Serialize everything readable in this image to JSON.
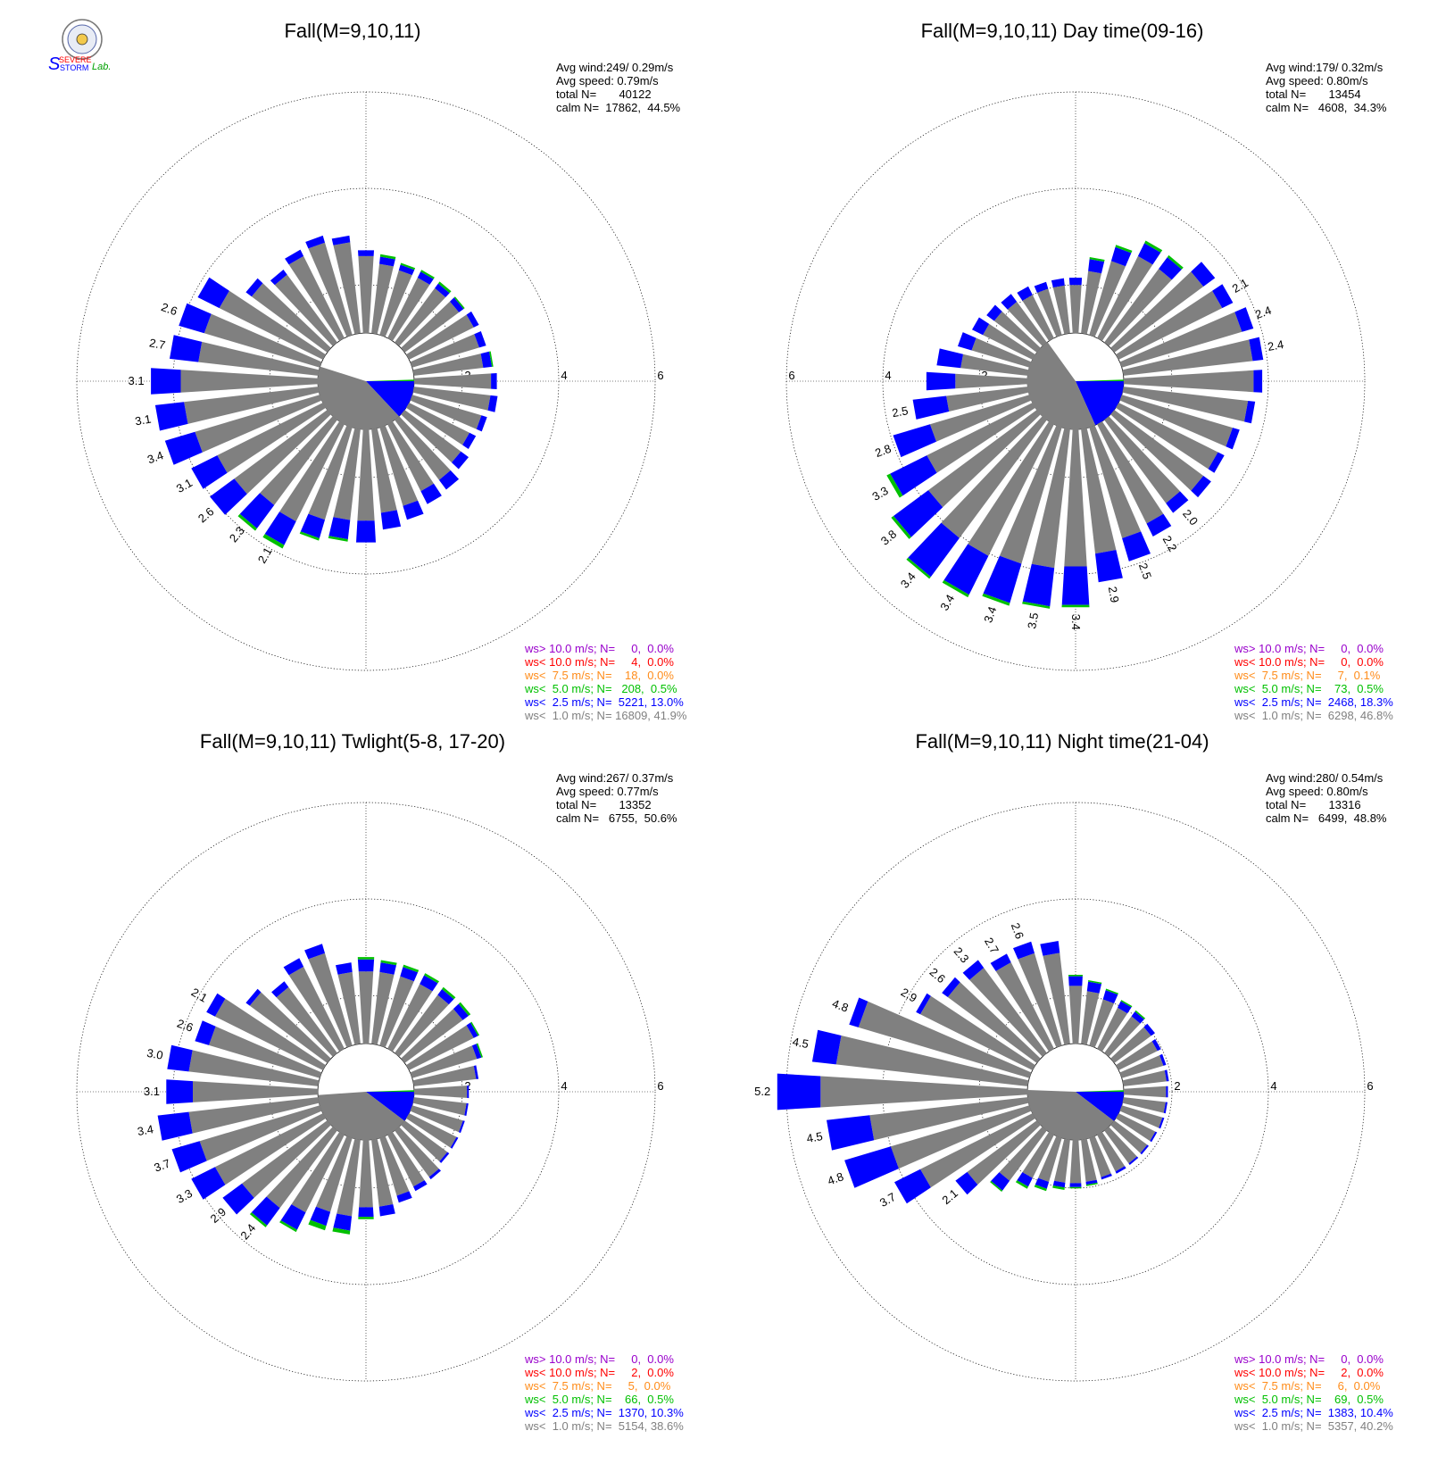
{
  "logo": {
    "text_top": "SEVERE",
    "text_mid": "STORM",
    "text_lab": "Lab.",
    "lead_letter": "S"
  },
  "colors": {
    "gray": "#808080",
    "blue": "#0000ff",
    "green": "#00c000",
    "orange": "#ff8c1a",
    "red": "#ff0000",
    "purple": "#9900cc"
  },
  "chart_data": [
    {
      "type": "rose",
      "title": "Fall(M=9,10,11)",
      "stats": [
        "Avg wind:249/ 0.29m/s",
        "Avg speed: 0.79m/s",
        "total N=       40122",
        "calm N=  17862,  44.5%"
      ],
      "ring_labels": [
        "2",
        "4",
        "6"
      ],
      "ring_label_side": "right",
      "legend": [
        {
          "text": "ws> 10.0 m/s; N=     0,  0.0%",
          "color": "#9900cc"
        },
        {
          "text": "ws< 10.0 m/s; N=     4,  0.0%",
          "color": "#ff0000"
        },
        {
          "text": "ws<  7.5 m/s; N=    18,  0.0%",
          "color": "#ff8c1a"
        },
        {
          "text": "ws<  5.0 m/s; N=   208,  0.5%",
          "color": "#00c000"
        },
        {
          "text": "ws<  2.5 m/s; N=  5221, 13.0%",
          "color": "#0000ff"
        },
        {
          "text": "ws<  1.0 m/s; N= 16809, 41.9%",
          "color": "#808080"
        }
      ],
      "bars": {
        "directions": [
          0,
          10,
          20,
          30,
          40,
          50,
          60,
          70,
          80,
          90,
          100,
          110,
          120,
          130,
          140,
          150,
          160,
          170,
          180,
          190,
          200,
          210,
          220,
          230,
          240,
          250,
          260,
          270,
          280,
          290,
          300,
          310,
          320,
          330,
          340,
          350
        ],
        "gray": [
          1.6,
          1.45,
          1.4,
          1.4,
          1.4,
          1.4,
          1.5,
          1.45,
          1.45,
          1.6,
          1.6,
          1.5,
          1.4,
          1.45,
          1.55,
          1.55,
          1.7,
          1.75,
          1.9,
          1.9,
          2.0,
          2.25,
          2.2,
          2.4,
          2.45,
          2.7,
          2.8,
          2.85,
          2.5,
          2.5,
          2.4,
          1.95,
          1.75,
          1.9,
          2.0,
          1.9
        ],
        "blue": [
          0.12,
          0.15,
          0.12,
          0.14,
          0.12,
          0.12,
          0.12,
          0.15,
          0.18,
          0.12,
          0.15,
          0.12,
          0.15,
          0.2,
          0.25,
          0.3,
          0.3,
          0.35,
          0.45,
          0.4,
          0.4,
          0.55,
          0.6,
          0.63,
          0.6,
          0.65,
          0.6,
          0.62,
          0.6,
          0.55,
          0.5,
          0.15,
          0.13,
          0.15,
          0.15,
          0.14
        ],
        "green": [
          0,
          0.05,
          0.04,
          0.04,
          0.05,
          0.03,
          0,
          0,
          0.03,
          0,
          0,
          0,
          0,
          0,
          0,
          0,
          0,
          0,
          0,
          0.05,
          0.05,
          0.08,
          0.06,
          0,
          0,
          0,
          0,
          0,
          0,
          0,
          0,
          0,
          0,
          0,
          0,
          0
        ],
        "labels": [
          "",
          "",
          "",
          "",
          "",
          "",
          "",
          "",
          "",
          "",
          "",
          "",
          "",
          "",
          "",
          "",
          "",
          "",
          "",
          "",
          "",
          "2.1",
          "2.3",
          "2.6",
          "3.1",
          "3.4",
          "3.1",
          "3.1",
          "2.7",
          "2.6",
          "",
          "",
          "",
          "",
          "",
          ""
        ],
        "calm_gray_frac": 0.419,
        "calm_blue_frac": 0.13,
        "calm_green_frac": 0.005
      }
    },
    {
      "type": "rose",
      "title": "Fall(M=9,10,11) Day time(09-16)",
      "stats": [
        "Avg wind:179/ 0.32m/s",
        "Avg speed: 0.80m/s",
        "total N=       13454",
        "calm N=   4608,  34.3%"
      ],
      "ring_labels": [
        "2",
        "4",
        "6"
      ],
      "ring_label_side": "left",
      "legend": [
        {
          "text": "ws> 10.0 m/s; N=     0,  0.0%",
          "color": "#9900cc"
        },
        {
          "text": "ws< 10.0 m/s; N=     0,  0.0%",
          "color": "#ff0000"
        },
        {
          "text": "ws<  7.5 m/s; N=     7,  0.1%",
          "color": "#ff8c1a"
        },
        {
          "text": "ws<  5.0 m/s; N=    73,  0.5%",
          "color": "#00c000"
        },
        {
          "text": "ws<  2.5 m/s; N=  2468, 18.3%",
          "color": "#0000ff"
        },
        {
          "text": "ws<  1.0 m/s; N=  6298, 46.8%",
          "color": "#808080"
        }
      ],
      "bars": {
        "directions": [
          0,
          10,
          20,
          30,
          40,
          50,
          60,
          70,
          80,
          90,
          100,
          110,
          120,
          130,
          140,
          150,
          160,
          170,
          180,
          190,
          200,
          210,
          220,
          230,
          240,
          250,
          260,
          270,
          280,
          290,
          300,
          310,
          320,
          330,
          340,
          350
        ],
        "gray": [
          1.0,
          1.3,
          1.6,
          1.9,
          1.9,
          2.3,
          2.4,
          2.6,
          2.7,
          2.7,
          2.6,
          2.4,
          2.3,
          2.3,
          2.15,
          2.3,
          2.4,
          2.6,
          2.85,
          2.9,
          2.95,
          3.05,
          3.05,
          2.8,
          2.45,
          2.15,
          1.7,
          1.5,
          1.4,
          1.25,
          1.15,
          1.1,
          1.05,
          1.0,
          1.0,
          1.0
        ],
        "blue": [
          0.15,
          0.25,
          0.3,
          0.3,
          0.3,
          0.3,
          0.25,
          0.25,
          0.22,
          0.18,
          0.15,
          0.15,
          0.15,
          0.2,
          0.25,
          0.3,
          0.5,
          0.6,
          0.8,
          0.8,
          0.85,
          0.9,
          1.0,
          0.9,
          0.85,
          0.8,
          0.7,
          0.6,
          0.5,
          0.3,
          0.25,
          0.2,
          0.2,
          0.2,
          0.15,
          0.15
        ],
        "green": [
          0,
          0.04,
          0.05,
          0.06,
          0.05,
          0,
          0,
          0,
          0,
          0,
          0,
          0,
          0,
          0,
          0,
          0,
          0,
          0,
          0.05,
          0.05,
          0.06,
          0.06,
          0.05,
          0.06,
          0.08,
          0,
          0,
          0,
          0,
          0,
          0,
          0,
          0,
          0,
          0,
          0
        ],
        "labels": [
          "",
          "",
          "",
          "",
          "",
          "",
          "2.1",
          "2.4",
          "2.4",
          "",
          "",
          "",
          "",
          "",
          "2.0",
          "2.2",
          "2.5",
          "2.9",
          "3.4",
          "3.5",
          "3.4",
          "3.4",
          "3.4",
          "3.8",
          "3.3",
          "2.8",
          "2.5",
          "",
          "",
          "",
          "",
          "",
          "",
          "",
          "",
          ""
        ],
        "calm_gray_frac": 0.468,
        "calm_blue_frac": 0.183,
        "calm_green_frac": 0.005
      }
    },
    {
      "type": "rose",
      "title": "Fall(M=9,10,11) Twlight(5-8, 17-20)",
      "stats": [
        "Avg wind:267/ 0.37m/s",
        "Avg speed: 0.77m/s",
        "total N=       13352",
        "calm N=   6755,  50.6%"
      ],
      "ring_labels": [
        "2",
        "4",
        "6"
      ],
      "ring_label_side": "right",
      "legend": [
        {
          "text": "ws> 10.0 m/s; N=     0,  0.0%",
          "color": "#9900cc"
        },
        {
          "text": "ws< 10.0 m/s; N=     2,  0.0%",
          "color": "#ff0000"
        },
        {
          "text": "ws<  7.5 m/s; N=     5,  0.0%",
          "color": "#ff8c1a"
        },
        {
          "text": "ws<  5.0 m/s; N=    66,  0.5%",
          "color": "#00c000"
        },
        {
          "text": "ws<  2.5 m/s; N=  1370, 10.3%",
          "color": "#0000ff"
        },
        {
          "text": "ws<  1.0 m/s; N=  5154, 38.6%",
          "color": "#808080"
        }
      ],
      "bars": {
        "directions": [
          0,
          10,
          20,
          30,
          40,
          50,
          60,
          70,
          80,
          90,
          100,
          110,
          120,
          130,
          140,
          150,
          160,
          170,
          180,
          190,
          200,
          210,
          220,
          230,
          240,
          250,
          260,
          270,
          280,
          290,
          300,
          310,
          320,
          330,
          340,
          350
        ],
        "gray": [
          1.5,
          1.5,
          1.5,
          1.5,
          1.5,
          1.5,
          1.5,
          1.4,
          1.3,
          1.1,
          1.1,
          1.1,
          1.1,
          1.1,
          1.2,
          1.2,
          1.25,
          1.4,
          1.4,
          1.6,
          1.6,
          1.8,
          2.0,
          2.2,
          2.5,
          2.6,
          2.7,
          2.6,
          2.7,
          2.4,
          2.5,
          2.0,
          1.7,
          1.9,
          2.0,
          1.5
        ],
        "blue": [
          0.25,
          0.2,
          0.2,
          0.2,
          0.15,
          0.15,
          0.1,
          0.1,
          0.05,
          0.04,
          0.04,
          0.04,
          0.04,
          0.05,
          0.06,
          0.1,
          0.15,
          0.2,
          0.2,
          0.3,
          0.3,
          0.4,
          0.45,
          0.5,
          0.55,
          0.6,
          0.65,
          0.55,
          0.45,
          0.3,
          0.2,
          0.1,
          0.15,
          0.2,
          0.2,
          0.2
        ],
        "green": [
          0.05,
          0.05,
          0.05,
          0.05,
          0.05,
          0.05,
          0.03,
          0.03,
          0,
          0,
          0,
          0,
          0,
          0,
          0,
          0,
          0,
          0,
          0.05,
          0.08,
          0.1,
          0.05,
          0.05,
          0,
          0,
          0,
          0,
          0,
          0,
          0,
          0,
          0,
          0,
          0,
          0,
          0
        ],
        "labels": [
          "",
          "",
          "",
          "",
          "",
          "",
          "",
          "",
          "",
          "",
          "",
          "",
          "",
          "",
          "",
          "",
          "",
          "",
          "",
          "",
          "",
          "",
          "2.4",
          "2.9",
          "3.3",
          "3.7",
          "3.4",
          "3.1",
          "3.0",
          "2.6",
          "2.1",
          "",
          "",
          "",
          "",
          ""
        ],
        "calm_gray_frac": 0.386,
        "calm_blue_frac": 0.103,
        "calm_green_frac": 0.005
      }
    },
    {
      "type": "rose",
      "title": "Fall(M=9,10,11) Night time(21-04)",
      "stats": [
        "Avg wind:280/ 0.54m/s",
        "Avg speed: 0.80m/s",
        "total N=       13316",
        "calm N=   6499,  48.8%"
      ],
      "ring_labels": [
        "2",
        "4",
        "6"
      ],
      "ring_label_side": "right",
      "legend": [
        {
          "text": "ws> 10.0 m/s; N=     0,  0.0%",
          "color": "#9900cc"
        },
        {
          "text": "ws< 10.0 m/s; N=     2,  0.0%",
          "color": "#ff0000"
        },
        {
          "text": "ws<  7.5 m/s; N=     6,  0.0%",
          "color": "#ff8c1a"
        },
        {
          "text": "ws<  5.0 m/s; N=    69,  0.5%",
          "color": "#00c000"
        },
        {
          "text": "ws<  2.5 m/s; N=  1383, 10.4%",
          "color": "#0000ff"
        },
        {
          "text": "ws<  1.0 m/s; N=  5357, 40.2%",
          "color": "#808080"
        }
      ],
      "bars": {
        "directions": [
          0,
          10,
          20,
          30,
          40,
          50,
          60,
          70,
          80,
          90,
          100,
          110,
          120,
          130,
          140,
          150,
          160,
          170,
          180,
          190,
          200,
          210,
          220,
          230,
          240,
          250,
          260,
          270,
          280,
          290,
          300,
          310,
          320,
          330,
          340,
          350
        ],
        "gray": [
          1.2,
          1.1,
          1.0,
          0.95,
          0.95,
          0.95,
          0.9,
          0.9,
          0.9,
          0.88,
          0.88,
          0.88,
          0.85,
          0.85,
          0.85,
          0.85,
          0.85,
          0.88,
          0.9,
          0.9,
          0.95,
          1.0,
          1.3,
          1.8,
          2.6,
          3.0,
          3.3,
          4.3,
          4.0,
          3.7,
          2.6,
          2.3,
          2.2,
          2.0,
          2.0,
          1.9
        ],
        "blue": [
          0.2,
          0.2,
          0.2,
          0.15,
          0.12,
          0.1,
          0.08,
          0.06,
          0.05,
          0.04,
          0.04,
          0.04,
          0.04,
          0.04,
          0.04,
          0.05,
          0.05,
          0.06,
          0.08,
          0.1,
          0.15,
          0.2,
          0.25,
          0.3,
          0.6,
          1.0,
          0.9,
          0.9,
          0.5,
          0.2,
          0.1,
          0.15,
          0.2,
          0.2,
          0.25,
          0.25
        ],
        "green": [
          0.03,
          0.03,
          0.03,
          0.03,
          0.03,
          0,
          0,
          0,
          0,
          0,
          0,
          0,
          0,
          0,
          0,
          0,
          0,
          0.03,
          0.03,
          0.05,
          0.05,
          0.05,
          0.03,
          0,
          0,
          0,
          0,
          0,
          0,
          0,
          0,
          0,
          0,
          0,
          0,
          0
        ],
        "labels": [
          "",
          "",
          "",
          "",
          "",
          "",
          "",
          "",
          "",
          "",
          "",
          "",
          "",
          "",
          "",
          "",
          "",
          "",
          "",
          "",
          "",
          "",
          "",
          "2.1",
          "3.7",
          "4.8",
          "4.5",
          "5.2",
          "4.5",
          "4.8",
          "2.9",
          "2.6",
          "2.3",
          "2.7",
          "2.6",
          ""
        ],
        "calm_gray_frac": 0.402,
        "calm_blue_frac": 0.104,
        "calm_green_frac": 0.005
      }
    }
  ]
}
